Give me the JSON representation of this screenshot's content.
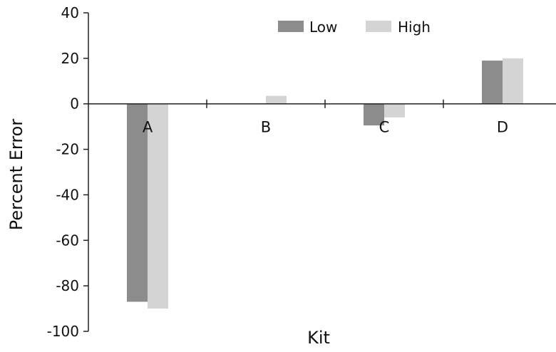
{
  "chart_data": {
    "type": "bar",
    "title": "",
    "xlabel": "Kit",
    "ylabel": "Percent Error",
    "categories": [
      "A",
      "B",
      "C",
      "D"
    ],
    "series": [
      {
        "name": "Low",
        "color": "#8c8c8c",
        "values": [
          -87,
          0,
          -9.5,
          19
        ]
      },
      {
        "name": "High",
        "color": "#d4d4d4",
        "values": [
          -90,
          3.5,
          -6,
          20
        ]
      }
    ],
    "ylim": [
      -100,
      40
    ],
    "yticks": [
      "40",
      "20",
      "0",
      "-20",
      "-40",
      "-60",
      "-80",
      "-100"
    ],
    "grid": false,
    "legend": "top-right"
  }
}
